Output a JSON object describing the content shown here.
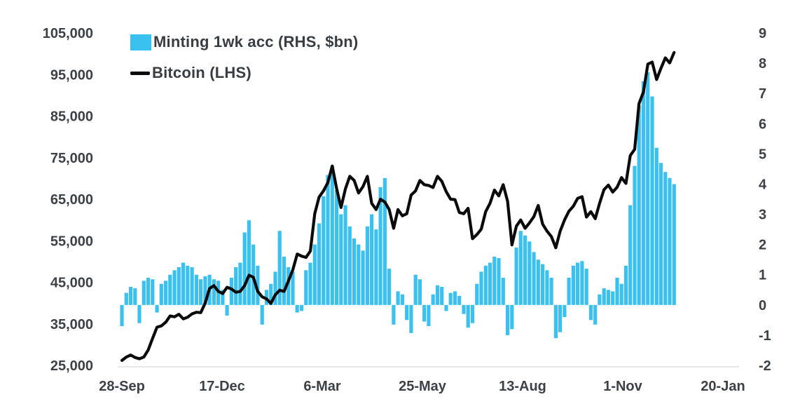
{
  "chart_data": {
    "type": "combo",
    "legend_position": "top-left",
    "grid": false,
    "background": "#ffffff",
    "text_color": "#3c4148",
    "axis_line_color": "#e7e7e7",
    "series": [
      {
        "name": "Minting 1wk acc (RHS, $bn)",
        "type": "bar",
        "axis": "right",
        "color": "#3bc1f0",
        "unit": "$bn",
        "values": [
          -0.7,
          0.4,
          0.6,
          0.55,
          -0.6,
          0.8,
          0.9,
          0.85,
          -0.25,
          0.7,
          0.8,
          1.0,
          1.15,
          1.25,
          1.4,
          1.3,
          1.25,
          1.0,
          0.85,
          0.95,
          1.0,
          0.85,
          0.8,
          0.5,
          -0.35,
          0.9,
          1.25,
          1.4,
          2.4,
          2.8,
          2.0,
          1.3,
          -0.65,
          0.5,
          0.7,
          1.1,
          2.45,
          1.6,
          1.25,
          1.1,
          -0.25,
          -0.2,
          1.15,
          1.4,
          2.0,
          2.7,
          3.6,
          4.3,
          4.6,
          3.8,
          3.0,
          3.3,
          2.6,
          2.2,
          2.0,
          1.8,
          2.6,
          3.0,
          2.5,
          3.9,
          4.2,
          1.2,
          -0.65,
          0.45,
          0.35,
          -0.5,
          -0.93,
          1.0,
          0.85,
          -0.55,
          -0.7,
          0.35,
          0.65,
          0.6,
          -0.2,
          0.4,
          0.45,
          0.3,
          -0.3,
          -0.75,
          -0.6,
          0.7,
          1.1,
          1.3,
          1.4,
          1.6,
          1.55,
          0.9,
          -1.0,
          -0.8,
          1.9,
          2.45,
          2.3,
          2.1,
          1.75,
          1.5,
          1.35,
          1.15,
          0.9,
          -1.1,
          -0.9,
          -0.4,
          0.9,
          1.3,
          1.4,
          1.45,
          1.2,
          -0.5,
          -0.65,
          0.35,
          0.55,
          0.5,
          0.45,
          0.9,
          0.7,
          1.3,
          3.3,
          4.6,
          6.6,
          7.4,
          7.7,
          6.9,
          5.2,
          4.7,
          4.4,
          4.2,
          4.0
        ]
      },
      {
        "name": "Bitcoin (LHS)",
        "type": "line",
        "axis": "left",
        "color": "#0b0b0b",
        "unit": "USD",
        "values": [
          26200,
          27000,
          27500,
          26900,
          26600,
          27000,
          28700,
          31500,
          34200,
          34500,
          35400,
          36900,
          36700,
          37300,
          36200,
          36600,
          37400,
          37800,
          37700,
          40000,
          43500,
          44200,
          42800,
          42300,
          43800,
          43400,
          42600,
          42800,
          44200,
          46700,
          46200,
          42800,
          41500,
          41000,
          39900,
          42000,
          43100,
          42800,
          45300,
          48000,
          51800,
          51300,
          51000,
          52500,
          61500,
          65500,
          67000,
          69000,
          73000,
          67500,
          63000,
          67500,
          70500,
          69500,
          66500,
          68000,
          70500,
          64000,
          62500,
          65000,
          64300,
          62500,
          58000,
          62500,
          61000,
          61500,
          66000,
          67000,
          69500,
          68500,
          68300,
          67800,
          70500,
          69300,
          66800,
          65000,
          64900,
          61800,
          61500,
          62800,
          55500,
          56500,
          57800,
          62000,
          64000,
          67200,
          65800,
          68500,
          64500,
          54000,
          58500,
          60000,
          58000,
          59300,
          60800,
          63500,
          59000,
          57300,
          56000,
          53300,
          57300,
          60000,
          62100,
          63300,
          65200,
          65600,
          60700,
          62000,
          60300,
          64000,
          67300,
          68400,
          66700,
          67900,
          70200,
          68800,
          75500,
          77000,
          88000,
          90800,
          97500,
          98000,
          93800,
          96500,
          99000,
          97800,
          100300
        ]
      }
    ],
    "x": {
      "tick_labels": [
        "28-Sep",
        "17-Dec",
        "6-Mar",
        "25-May",
        "13-Aug",
        "1-Nov",
        "20-Jan"
      ],
      "tick_interval_days": 80,
      "sample_interval_days": 3.5
    },
    "axes": {
      "left": {
        "min": 25000,
        "max": 105000,
        "tick_labels": [
          "105,000",
          "95,000",
          "85,000",
          "75,000",
          "65,000",
          "55,000",
          "45,000",
          "35,000",
          "25,000"
        ]
      },
      "right": {
        "min": -2,
        "max": 9,
        "tick_labels": [
          "9",
          "8",
          "7",
          "6",
          "5",
          "4",
          "3",
          "2",
          "1",
          "0",
          "-1",
          "-2"
        ]
      }
    }
  }
}
